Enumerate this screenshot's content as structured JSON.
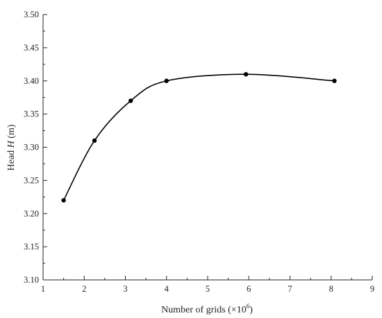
{
  "chart_data": {
    "type": "line",
    "title": "",
    "xlabel": {
      "prefix": "Number of grids (×10",
      "exponent": "6",
      "suffix": ")"
    },
    "ylabel": {
      "prefix": "Head ",
      "symbol": "H",
      "suffix": " (m)"
    },
    "xlim": [
      1,
      9
    ],
    "ylim": [
      3.1,
      3.5
    ],
    "x_ticks": [
      "1",
      "2",
      "3",
      "4",
      "5",
      "6",
      "7",
      "8",
      "9"
    ],
    "y_ticks": [
      "3.10",
      "3.15",
      "3.20",
      "3.25",
      "3.30",
      "3.35",
      "3.40",
      "3.45",
      "3.50"
    ],
    "grid": false,
    "legend": "none",
    "line_color": "#000000",
    "series": [
      {
        "x": [
          1.5,
          2.25,
          3.13,
          4.0,
          5.93,
          8.08
        ],
        "y": [
          3.22,
          3.31,
          3.37,
          3.4,
          3.41,
          3.4
        ]
      }
    ]
  }
}
